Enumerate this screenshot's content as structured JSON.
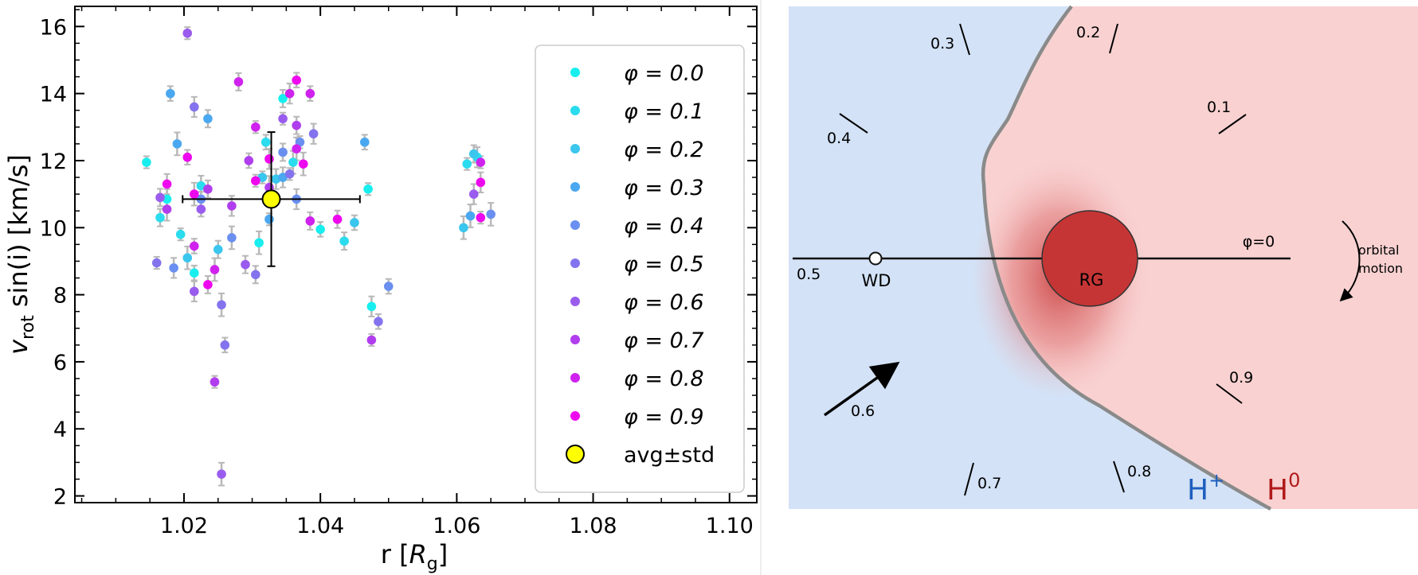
{
  "chart_data": {
    "type": "scatter",
    "xlabel_prefix": "r [",
    "xlabel_var": "R",
    "xlabel_sub": "g",
    "xlabel_suffix": "]",
    "ylabel_var": "v",
    "ylabel_sub": "rot",
    "ylabel_rest": " sin(i) [km/s]",
    "xlim": [
      1.004,
      1.104
    ],
    "ylim": [
      1.8,
      16.6
    ],
    "xticks": [
      "1.02",
      "1.04",
      "1.06",
      "1.08",
      "1.10"
    ],
    "xtick_values": [
      1.02,
      1.04,
      1.06,
      1.08,
      1.1
    ],
    "yticks": [
      "2",
      "4",
      "6",
      "8",
      "10",
      "12",
      "14",
      "16"
    ],
    "ytick_values": [
      2,
      4,
      6,
      8,
      10,
      12,
      14,
      16
    ],
    "legend_position": "right",
    "series": [
      {
        "name": "φ = 0.0",
        "color": "#19eeee",
        "points": [
          [
            1.0145,
            11.95
          ],
          [
            1.0175,
            10.85
          ],
          [
            1.0215,
            8.65
          ],
          [
            1.031,
            9.55
          ],
          [
            1.0345,
            13.85
          ],
          [
            1.047,
            11.15
          ],
          [
            1.0475,
            7.65
          ],
          [
            1.04,
            9.95
          ]
        ]
      },
      {
        "name": "φ = 0.1",
        "color": "#2bdcee",
        "points": [
          [
            1.0165,
            10.3
          ],
          [
            1.0195,
            9.8
          ],
          [
            1.0225,
            11.25
          ],
          [
            1.032,
            12.55
          ],
          [
            1.036,
            11.95
          ],
          [
            1.0435,
            9.6
          ],
          [
            1.0615,
            11.9
          ],
          [
            1.063,
            12.1
          ]
        ]
      },
      {
        "name": "φ = 0.2",
        "color": "#3bc6ee",
        "points": [
          [
            1.0205,
            9.1
          ],
          [
            1.025,
            9.35
          ],
          [
            1.0315,
            11.5
          ],
          [
            1.0335,
            11.45
          ],
          [
            1.045,
            10.15
          ],
          [
            1.061,
            10.0
          ],
          [
            1.0625,
            12.2
          ]
        ]
      },
      {
        "name": "φ = 0.3",
        "color": "#4aa8f0",
        "points": [
          [
            1.018,
            14.0
          ],
          [
            1.019,
            12.5
          ],
          [
            1.0235,
            13.25
          ],
          [
            1.0325,
            10.25
          ],
          [
            1.0345,
            11.5
          ],
          [
            1.0465,
            12.55
          ],
          [
            1.062,
            10.35
          ]
        ]
      },
      {
        "name": "φ = 0.4",
        "color": "#6a8ff0",
        "points": [
          [
            1.0185,
            8.8
          ],
          [
            1.0225,
            10.85
          ],
          [
            1.027,
            9.7
          ],
          [
            1.0345,
            12.25
          ],
          [
            1.037,
            12.55
          ],
          [
            1.0365,
            10.85
          ],
          [
            1.05,
            8.25
          ],
          [
            1.065,
            10.4
          ]
        ]
      },
      {
        "name": "φ = 0.5",
        "color": "#8473ee",
        "points": [
          [
            1.016,
            8.95
          ],
          [
            1.0215,
            13.6
          ],
          [
            1.026,
            6.5
          ],
          [
            1.0255,
            7.7
          ],
          [
            1.0305,
            8.6
          ],
          [
            1.0355,
            11.6
          ],
          [
            1.039,
            12.8
          ],
          [
            1.0485,
            7.2
          ]
        ]
      },
      {
        "name": "φ = 0.6",
        "color": "#9a5cee",
        "points": [
          [
            1.0165,
            10.9
          ],
          [
            1.0205,
            15.8
          ],
          [
            1.0215,
            8.1
          ],
          [
            1.0225,
            10.55
          ],
          [
            1.0255,
            2.65
          ],
          [
            1.029,
            8.9
          ],
          [
            1.0345,
            13.25
          ],
          [
            1.0625,
            11.0
          ]
        ]
      },
      {
        "name": "φ = 0.7",
        "color": "#b13eee",
        "points": [
          [
            1.0175,
            10.55
          ],
          [
            1.0235,
            11.15
          ],
          [
            1.0245,
            5.4
          ],
          [
            1.027,
            10.65
          ],
          [
            1.0295,
            12.0
          ],
          [
            1.0325,
            11.2
          ],
          [
            1.0365,
            13.05
          ],
          [
            1.0475,
            6.65
          ]
        ]
      },
      {
        "name": "φ = 0.8",
        "color": "#cf22ee",
        "points": [
          [
            1.0215,
            9.45
          ],
          [
            1.0245,
            8.75
          ],
          [
            1.028,
            14.35
          ],
          [
            1.0305,
            13.0
          ],
          [
            1.0355,
            14.0
          ],
          [
            1.0385,
            14.0
          ],
          [
            1.0365,
            12.35
          ],
          [
            1.0385,
            10.2
          ],
          [
            1.0635,
            11.95
          ]
        ]
      },
      {
        "name": "φ = 0.9",
        "color": "#ee08ee",
        "points": [
          [
            1.0175,
            11.3
          ],
          [
            1.0205,
            12.1
          ],
          [
            1.0215,
            11.0
          ],
          [
            1.0235,
            8.3
          ],
          [
            1.0305,
            11.4
          ],
          [
            1.0325,
            12.05
          ],
          [
            1.0365,
            14.4
          ],
          [
            1.0375,
            11.9
          ],
          [
            1.0425,
            10.25
          ],
          [
            1.0635,
            10.3
          ],
          [
            1.0635,
            11.35
          ]
        ]
      }
    ],
    "average": {
      "name": "avg±std",
      "color": "#ffff00",
      "x": 1.0328,
      "y": 10.85,
      "xerr": 0.013,
      "yerr": 2.0
    }
  },
  "diagram": {
    "phase_marks": [
      "0.1",
      "0.2",
      "0.3",
      "0.4",
      "0.5",
      "0.6",
      "0.7",
      "0.8",
      "0.9"
    ],
    "phi_zero_label": "φ=0",
    "wd_label": "WD",
    "rg_label": "RG",
    "orbital_motion_line1": "orbital",
    "orbital_motion_line2": "motion",
    "h_plus_main": "H",
    "h_plus_sup": "+",
    "h_zero_main": "H",
    "h_zero_sup": "0",
    "colors": {
      "ionized": "#d3e2f6",
      "neutral": "#f9d1d1",
      "giant": "#c63535",
      "front": "#8a8a8a",
      "h_plus": "#1f5fbf",
      "h_zero": "#b11a1a"
    }
  }
}
